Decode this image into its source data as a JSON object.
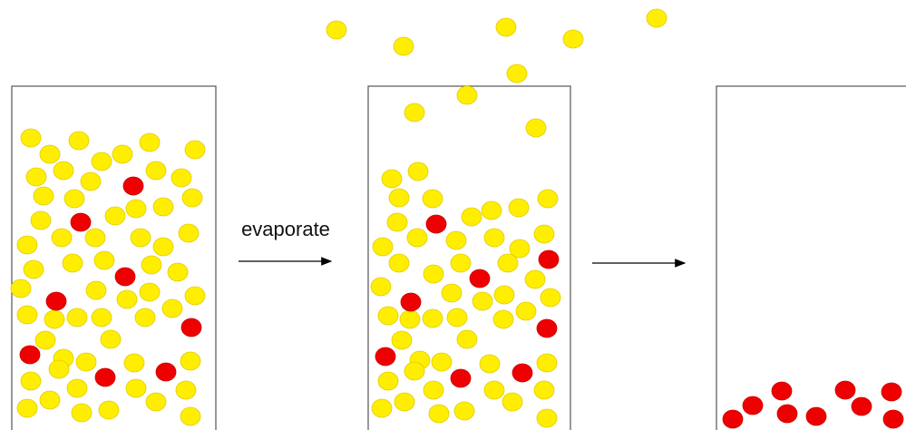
{
  "arrow_label": "evaporate"
}
